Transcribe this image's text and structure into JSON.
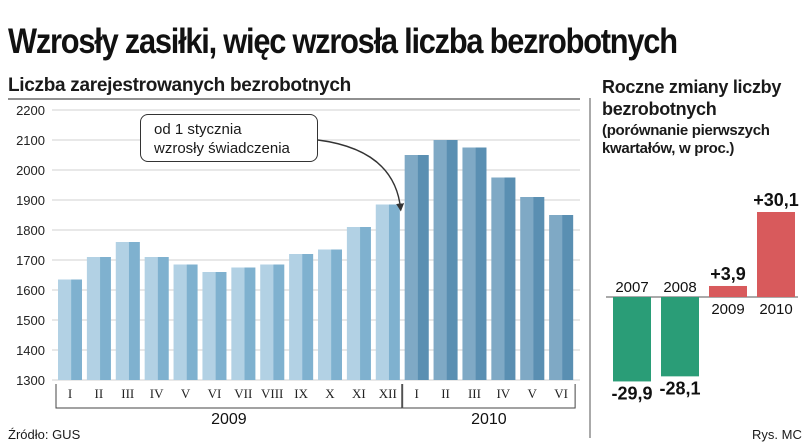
{
  "headline": "Wzrosły zasiłki, więc wzrosła liczba bezrobotnych",
  "footer": {
    "source": "Źródło: GUS",
    "author": "Rys. MC"
  },
  "chart_data": [
    {
      "type": "bar",
      "title": "Liczba zarejestrowanych bezrobotnych",
      "ylim": [
        1300,
        2200
      ],
      "yticks": [
        1300,
        1400,
        1500,
        1600,
        1700,
        1800,
        1900,
        2000,
        2100,
        2200
      ],
      "categories": [
        "I",
        "II",
        "III",
        "IV",
        "V",
        "VI",
        "VII",
        "VIII",
        "IX",
        "X",
        "XI",
        "XII",
        "I",
        "II",
        "III",
        "IV",
        "V",
        "VI"
      ],
      "groups": [
        {
          "label": "2009",
          "start": 0,
          "count": 12,
          "color_light": "#b2d1e4",
          "color_dark": "#7fb1cf"
        },
        {
          "label": "2010",
          "start": 12,
          "count": 6,
          "color_light": "#7fa9c5",
          "color_dark": "#5a8fb2"
        }
      ],
      "values": [
        1635,
        1710,
        1760,
        1710,
        1685,
        1660,
        1675,
        1685,
        1720,
        1735,
        1810,
        1885,
        2050,
        2100,
        2075,
        1975,
        1910,
        1850
      ],
      "annotation": {
        "lines": [
          "od 1 stycznia",
          "wzrosły świadczenia"
        ],
        "target_index": 12
      },
      "grid": true
    },
    {
      "type": "bar",
      "title": "Roczne zmiany liczby bezrobotnych",
      "subtitle": "(porównanie pierwszych kwartałów, w proc.)",
      "categories": [
        "2007",
        "2008",
        "2009",
        "2010"
      ],
      "values": [
        -29.9,
        -28.1,
        3.9,
        30.1
      ],
      "value_labels": [
        "-29,9",
        "-28,1",
        "+3,9",
        "+30,1"
      ],
      "ylim": [
        -32,
        32
      ],
      "colors": {
        "negative": "#2a9d77",
        "positive": "#d85a5c"
      }
    }
  ]
}
